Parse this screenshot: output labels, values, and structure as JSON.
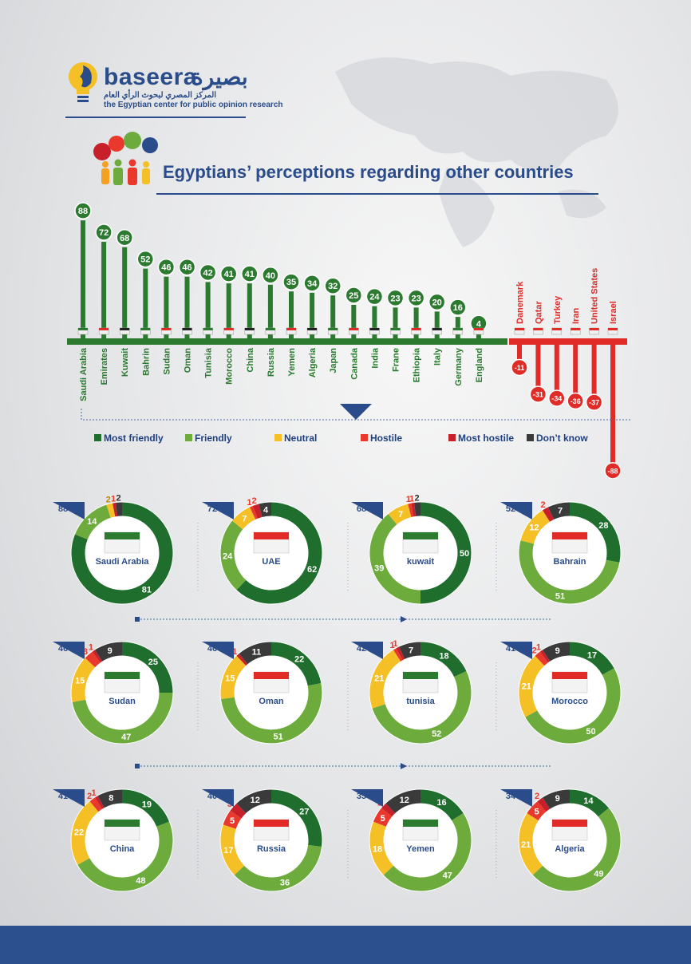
{
  "brand": {
    "name": "baseera",
    "arabic_name": "بصيرة",
    "arabic_sub": "المركز المصري لبحوث الرأي العام",
    "english_sub": "the Egyptian center for public opinion research"
  },
  "title": "Egyptians’ perceptions regarding other countries",
  "colors": {
    "most_friendly": "#1f6e2d",
    "friendly": "#6cab3c",
    "neutral": "#f5bf26",
    "hostile": "#e8392c",
    "most_hostile": "#c8202b",
    "dont_know": "#3a3a3a",
    "bar_green": "#2c7a30",
    "bar_red": "#e02b26",
    "accent_blue": "#2a4c8a"
  },
  "legend": [
    {
      "label": "Most friendly",
      "color": "#1f6e2d"
    },
    {
      "label": "Friendly",
      "color": "#6cab3c"
    },
    {
      "label": "Neutral",
      "color": "#f5bf26"
    },
    {
      "label": "Hostile",
      "color": "#e8392c"
    },
    {
      "label": "Most hostile",
      "color": "#c8202b"
    },
    {
      "label": "Don’t know",
      "color": "#3a3a3a"
    }
  ],
  "chart_data": [
    {
      "type": "bar",
      "categories": [
        "Saudi Arabia",
        "Emirates",
        "Kuwait",
        "Bahrin",
        "Sudan",
        "Oman",
        "Tunisia",
        "Morocco",
        "China",
        "Russia",
        "Yemen",
        "Algeria",
        "Japan",
        "Canada",
        "India",
        "Frane",
        "Ethiopia",
        "Italy",
        "Germany",
        "England",
        "Danemark",
        "Qatar",
        "Turkey",
        "Iran",
        "United States",
        "Israel"
      ],
      "values": [
        88,
        72,
        68,
        52,
        46,
        46,
        42,
        41,
        41,
        40,
        35,
        34,
        32,
        25,
        24,
        23,
        23,
        20,
        16,
        4,
        -11,
        -31,
        -34,
        -36,
        -37,
        -88
      ]
    },
    {
      "type": "pie",
      "segment_order": [
        "Most friendly",
        "Friendly",
        "Neutral",
        "Hostile",
        "Most hostile",
        "Don’t know"
      ],
      "donuts": [
        {
          "name": "Saudi Arabia",
          "score": 88,
          "values": [
            81,
            14,
            2,
            0,
            1,
            2
          ],
          "labels": [
            "81",
            "14",
            "2",
            "",
            "1",
            "2"
          ]
        },
        {
          "name": "UAE",
          "score": 72,
          "values": [
            62,
            24,
            7,
            1,
            2,
            4
          ],
          "labels": [
            "62",
            "24",
            "7",
            "1",
            "2",
            "4"
          ]
        },
        {
          "name": "kuwait",
          "score": 68,
          "values": [
            50,
            39,
            7,
            1,
            1,
            2
          ],
          "labels": [
            "50",
            "39",
            "7",
            "1",
            "1",
            "2"
          ]
        },
        {
          "name": "Bahrain",
          "score": 52,
          "values": [
            28,
            51,
            12,
            0,
            2,
            7
          ],
          "labels": [
            "28",
            "51",
            "12",
            "",
            "2",
            "7"
          ]
        },
        {
          "name": "Sudan",
          "score": 46,
          "values": [
            25,
            47,
            15,
            3,
            1,
            9
          ],
          "labels": [
            "25",
            "47",
            "15",
            "3",
            "1",
            "9"
          ]
        },
        {
          "name": "Oman",
          "score": 46,
          "values": [
            22,
            51,
            15,
            0,
            1,
            11
          ],
          "labels": [
            "22",
            "51",
            "15",
            "",
            "1",
            "11"
          ]
        },
        {
          "name": "tunisia",
          "score": 42,
          "values": [
            18,
            52,
            21,
            1,
            1,
            7
          ],
          "labels": [
            "18",
            "52",
            "21",
            "1",
            "1",
            "7"
          ]
        },
        {
          "name": "Morocco",
          "score": 41,
          "values": [
            17,
            50,
            21,
            2,
            1,
            9
          ],
          "labels": [
            "17",
            "50",
            "21",
            "2",
            "1",
            "9"
          ]
        },
        {
          "name": "China",
          "score": 41,
          "values": [
            19,
            48,
            22,
            2,
            1,
            8
          ],
          "labels": [
            "19",
            "48",
            "22",
            "2",
            "1",
            "8"
          ]
        },
        {
          "name": "Russia",
          "score": 40,
          "values": [
            27,
            36,
            17,
            5,
            3,
            12
          ],
          "labels": [
            "27",
            "36",
            "17",
            "5",
            "3",
            "12"
          ]
        },
        {
          "name": "Yemen",
          "score": 35,
          "values": [
            16,
            47,
            18,
            5,
            2,
            12
          ],
          "labels": [
            "16",
            "47",
            "18",
            "5",
            "2",
            "12"
          ]
        },
        {
          "name": "Algeria",
          "score": 34,
          "values": [
            14,
            49,
            21,
            5,
            2,
            9
          ],
          "labels": [
            "14",
            "49",
            "21",
            "5",
            "2",
            "9"
          ]
        }
      ]
    }
  ]
}
